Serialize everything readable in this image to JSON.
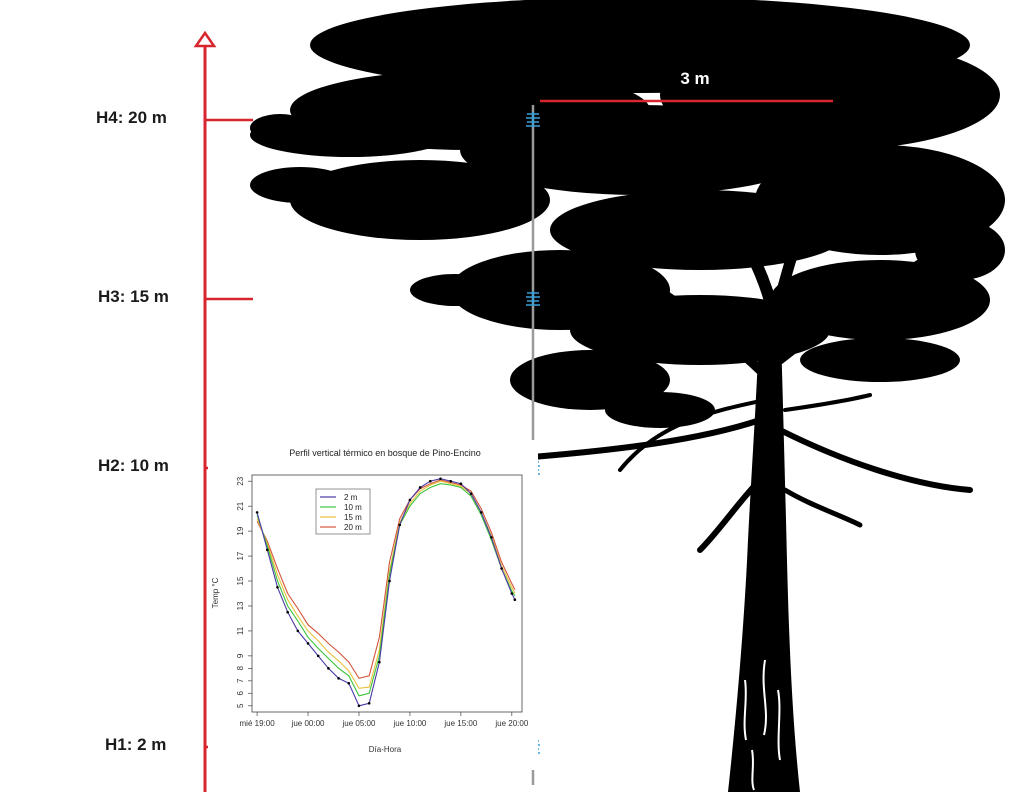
{
  "height_labels": [
    "H4: 20 m",
    "H3: 15 m",
    "H2: 10 m",
    "H1: 2 m"
  ],
  "canopy_width_label": "3 m",
  "colors": {
    "axis_red": "#d7262e",
    "tree": "#000000",
    "pole": "#9a9a9a",
    "sensor": "#3aa0d8"
  },
  "icons": [
    "arrow-up-icon",
    "sensor-icon",
    "tree-silhouette"
  ],
  "chart_data": {
    "type": "line",
    "title": "Perfil vertical térmico en bosque de Pino-Encino",
    "xlabel": "Día-Hora",
    "ylabel": "Temp °C",
    "x_ticks": [
      "mié 19:00",
      "jue 00:00",
      "jue 05:00",
      "jue 10:00",
      "jue 15:00",
      "jue 20:00"
    ],
    "x_tick_hours": [
      0,
      5,
      10,
      15,
      20,
      25
    ],
    "y_ticks": [
      5,
      6,
      7,
      8,
      9,
      11,
      13,
      15,
      17,
      19,
      21,
      23
    ],
    "xlim": [
      -0.5,
      26
    ],
    "ylim": [
      4.5,
      23.5
    ],
    "legend_position": "top-left",
    "series": [
      {
        "name": "2 m",
        "color": "#4b3aa8",
        "x": [
          0,
          1,
          2,
          3,
          4,
          5,
          6,
          7,
          8,
          9,
          10,
          11,
          12,
          13,
          14,
          15,
          16,
          17,
          18,
          19,
          20,
          21,
          22,
          23,
          24,
          25,
          25.3
        ],
        "y": [
          20.5,
          17.5,
          14.5,
          12.5,
          11.0,
          10.0,
          9.0,
          8.0,
          7.2,
          6.8,
          5.0,
          5.2,
          8.5,
          15.0,
          19.5,
          21.5,
          22.5,
          23.0,
          23.2,
          23.0,
          22.8,
          22.0,
          20.5,
          18.5,
          16.0,
          14.0,
          13.5
        ]
      },
      {
        "name": "10 m",
        "color": "#3cc43c",
        "x": [
          0,
          1,
          2,
          3,
          4,
          5,
          6,
          7,
          8,
          9,
          10,
          11,
          12,
          13,
          14,
          15,
          16,
          17,
          18,
          19,
          20,
          21,
          22,
          23,
          24,
          25,
          25.3
        ],
        "y": [
          20.3,
          17.8,
          15.0,
          13.0,
          11.8,
          10.5,
          9.6,
          8.8,
          8.0,
          7.4,
          5.8,
          6.0,
          9.0,
          15.5,
          19.5,
          21.0,
          22.0,
          22.5,
          22.8,
          22.7,
          22.5,
          21.8,
          20.3,
          18.3,
          16.0,
          14.2,
          13.8
        ]
      },
      {
        "name": "15 m",
        "color": "#e6c23c",
        "x": [
          0,
          1,
          2,
          3,
          4,
          5,
          6,
          7,
          8,
          9,
          10,
          11,
          12,
          13,
          14,
          15,
          16,
          17,
          18,
          19,
          20,
          21,
          22,
          23,
          24,
          25,
          25.3
        ],
        "y": [
          20.0,
          18.0,
          15.5,
          13.5,
          12.2,
          11.0,
          10.2,
          9.3,
          8.6,
          7.8,
          6.4,
          6.5,
          9.5,
          15.8,
          19.7,
          21.2,
          22.2,
          22.7,
          23.0,
          22.8,
          22.6,
          22.0,
          20.5,
          18.6,
          16.2,
          14.5,
          14.0
        ]
      },
      {
        "name": "20 m",
        "color": "#d2553c",
        "x": [
          0,
          1,
          2,
          3,
          4,
          5,
          6,
          7,
          8,
          9,
          10,
          11,
          12,
          13,
          14,
          15,
          16,
          17,
          18,
          19,
          20,
          21,
          22,
          23,
          24,
          25,
          25.3
        ],
        "y": [
          19.8,
          18.2,
          16.0,
          14.0,
          12.8,
          11.5,
          10.8,
          10.0,
          9.3,
          8.5,
          7.2,
          7.4,
          10.5,
          16.5,
          20.0,
          21.5,
          22.4,
          22.8,
          23.1,
          22.9,
          22.7,
          22.2,
          20.8,
          18.9,
          16.5,
          14.8,
          14.3
        ]
      }
    ]
  }
}
